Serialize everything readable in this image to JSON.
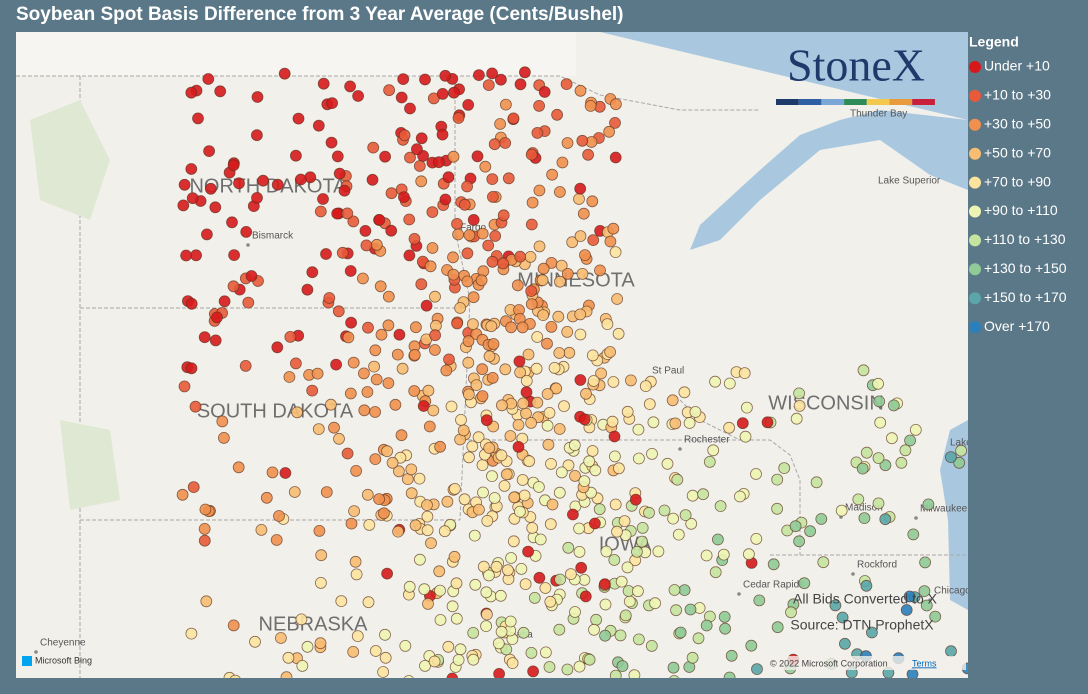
{
  "title": "Soybean Spot Basis Difference from 3 Year Average (Cents/Bushel)",
  "logo": "StoneX",
  "legend": {
    "title": "Legend",
    "items": [
      {
        "label": "Under +10",
        "color": "#d7191c"
      },
      {
        "label": "+10 to +30",
        "color": "#e85a3a"
      },
      {
        "label": "+30 to +50",
        "color": "#f0904e"
      },
      {
        "label": "+50 to +70",
        "color": "#f7bd72"
      },
      {
        "label": "+70 to +90",
        "color": "#fce3a0"
      },
      {
        "label": "+90 to +110",
        "color": "#eef5b4"
      },
      {
        "label": "+110 to +130",
        "color": "#c5e4a0"
      },
      {
        "label": "+130 to +150",
        "color": "#8fca97"
      },
      {
        "label": "+150 to +170",
        "color": "#5aa6a8"
      },
      {
        "label": "Over +170",
        "color": "#2b7fba"
      }
    ]
  },
  "map": {
    "states": [
      "NORTH DAKOTA",
      "SOUTH DAKOTA",
      "MINNESOTA",
      "WISCONSIN",
      "NEBRASKA",
      "IOWA"
    ],
    "places": [
      "Bismarck",
      "Fargo",
      "St Paul",
      "Rochester",
      "Thunder Bay",
      "Lake Superior",
      "Madison",
      "Milwaukee",
      "Rockford",
      "Cedar Rapids",
      "Omaha",
      "Cheyenne",
      "Chicago",
      "Lake Michigan"
    ],
    "notes": [
      "All Bids Converted to X",
      "Source: DTN ProphetX"
    ],
    "attribution": {
      "brand": "Microsoft Bing",
      "copyright": "© 2022 Microsoft Corporation",
      "terms": "Terms"
    }
  }
}
